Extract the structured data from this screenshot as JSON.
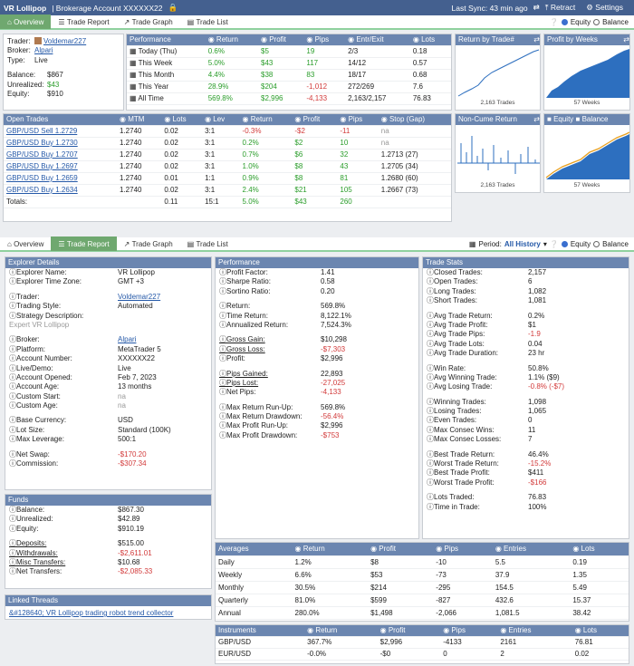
{
  "titlebar": {
    "app": "VR Lollipop",
    "account": "| Brokerage Account XXXXXX22",
    "last_sync": "Last Sync: 43 min ago",
    "retract": "Retract",
    "settings": "Settings"
  },
  "tabs": [
    "Overview",
    "Trade Report",
    "Trade Graph",
    "Trade List"
  ],
  "radio": {
    "equity": "Equity",
    "balance": "Balance"
  },
  "period": {
    "label": "Period:",
    "value": "All History"
  },
  "summary": {
    "trader_k": "Trader:",
    "trader": "Voldemar227",
    "broker_k": "Broker:",
    "broker": "Alpari",
    "type_k": "Type:",
    "type": "Live",
    "bal_k": "Balance:",
    "bal": "$867",
    "unr_k": "Unrealized:",
    "unr": "$43",
    "eq_k": "Equity:",
    "eq": "$910"
  },
  "perf_top": {
    "headers": [
      "Performance",
      "Return",
      "Profit",
      "Pips",
      "Entr/Exit",
      "Lots"
    ],
    "rows": [
      [
        "Today (Thu)",
        "0.6%",
        "$5",
        "19",
        "2/3",
        "0.18"
      ],
      [
        "This Week",
        "5.0%",
        "$43",
        "117",
        "14/12",
        "0.57"
      ],
      [
        "This Month",
        "4.4%",
        "$38",
        "83",
        "18/17",
        "0.68"
      ],
      [
        "This Year",
        "28.9%",
        "$204",
        "-1,012",
        "272/269",
        "7.6"
      ],
      [
        "All Time",
        "569.8%",
        "$2,996",
        "-4,133",
        "2,163/2,157",
        "76.83"
      ]
    ]
  },
  "minicharts": {
    "c1": "Return by Trade#",
    "c1cap": "2,163 Trades",
    "c2": "Profit by Weeks",
    "c2cap": "57 Weeks",
    "c3": "Non-Cume Return",
    "c3cap": "2,163 Trades",
    "c4a": "Equity",
    "c4b": "Balance",
    "c4cap": "57 Weeks"
  },
  "open_trades": {
    "headers": [
      "Open Trades",
      "MTM",
      "Lots",
      "Lev",
      "Return",
      "Profit",
      "Pips",
      "Stop (Gap)"
    ],
    "rows": [
      [
        "GBP/USD Sell 1.2729",
        "1.2740",
        "0.02",
        "3:1",
        "-0.3%",
        "-$2",
        "-11",
        "na"
      ],
      [
        "GBP/USD Buy 1.2730",
        "1.2740",
        "0.02",
        "3:1",
        "0.2%",
        "$2",
        "10",
        "na"
      ],
      [
        "GBP/USD Buy 1.2707",
        "1.2740",
        "0.02",
        "3:1",
        "0.7%",
        "$6",
        "32",
        "1.2713 (27)"
      ],
      [
        "GBP/USD Buy 1.2697",
        "1.2740",
        "0.02",
        "3:1",
        "1.0%",
        "$8",
        "43",
        "1.2705 (34)"
      ],
      [
        "GBP/USD Buy 1.2659",
        "1.2740",
        "0.01",
        "1:1",
        "0.9%",
        "$8",
        "81",
        "1.2680 (60)"
      ],
      [
        "GBP/USD Buy 1.2634",
        "1.2740",
        "0.02",
        "3:1",
        "2.4%",
        "$21",
        "105",
        "1.2667 (73)"
      ]
    ],
    "totals": [
      "Totals:",
      "",
      "0.11",
      "15:1",
      "5.0%",
      "$43",
      "260",
      ""
    ]
  },
  "explorer": {
    "title": "Explorer Details",
    "rows": [
      [
        "Explorer Name:",
        "VR Lollipop"
      ],
      [
        "Explorer Time Zone:",
        "GMT +3"
      ],
      [
        "",
        ""
      ],
      [
        "Trader:",
        "Voldemar227"
      ],
      [
        "Trading Style:",
        "Automated"
      ],
      [
        "Strategy Description:",
        ""
      ],
      [
        "Expert VR Lollipop",
        ""
      ],
      [
        "",
        ""
      ],
      [
        "Broker:",
        "Alpari"
      ],
      [
        "Platform:",
        "MetaTrader 5"
      ],
      [
        "Account Number:",
        "XXXXXX22"
      ],
      [
        "Live/Demo:",
        "Live"
      ],
      [
        "Account Opened:",
        "Feb 7, 2023"
      ],
      [
        "Account Age:",
        "13 months"
      ],
      [
        "Custom Start:",
        "na"
      ],
      [
        "Custom Age:",
        "na"
      ],
      [
        "",
        ""
      ],
      [
        "Base Currency:",
        "USD"
      ],
      [
        "Lot Size:",
        "Standard (100K)"
      ],
      [
        "Max Leverage:",
        "500:1"
      ],
      [
        "",
        ""
      ],
      [
        "Net Swap:",
        "-$170.20"
      ],
      [
        "Commission:",
        "-$307.34"
      ]
    ]
  },
  "funds": {
    "title": "Funds",
    "rows": [
      [
        "Balance:",
        "$867.30"
      ],
      [
        "Unrealized:",
        "$42.89"
      ],
      [
        "Equity:",
        "$910.19"
      ],
      [
        "",
        ""
      ],
      [
        "Deposits:",
        "$515.00"
      ],
      [
        "Withdrawals:",
        "-$2,611.01"
      ],
      [
        "Misc Transfers:",
        "$10.68"
      ],
      [
        "Net Transfers:",
        "-$2,085.33"
      ]
    ]
  },
  "linked": {
    "title": "Linked Threads",
    "text": "&#128640; VR Lollipop     trading robot trend collector"
  },
  "performance": {
    "title": "Performance",
    "rows": [
      [
        "Profit Factor:",
        "1.41"
      ],
      [
        "Sharpe Ratio:",
        "0.58"
      ],
      [
        "Sortino Ratio:",
        "0.20"
      ],
      [
        "",
        ""
      ],
      [
        "Return:",
        "569.8%"
      ],
      [
        "Time Return:",
        "8,122.1%"
      ],
      [
        "Annualized Return:",
        "7,524.3%"
      ],
      [
        "",
        ""
      ],
      [
        "Gross Gain:",
        "$10,298"
      ],
      [
        "Gross Loss:",
        "-$7,303"
      ],
      [
        "Profit:",
        "$2,996"
      ],
      [
        "",
        ""
      ],
      [
        "Pips Gained:",
        "22,893"
      ],
      [
        "Pips Lost:",
        "-27,025"
      ],
      [
        "Net Pips:",
        "-4,133"
      ],
      [
        "",
        ""
      ],
      [
        "Max Return Run-Up:",
        "569.8%"
      ],
      [
        "Max Return Drawdown:",
        "-56.4%"
      ],
      [
        "Max Profit Run-Up:",
        "$2,996"
      ],
      [
        "Max Profit Drawdown:",
        "-$753"
      ]
    ]
  },
  "tradestats": {
    "title": "Trade Stats",
    "rows": [
      [
        "Closed Trades:",
        "2,157"
      ],
      [
        "Open Trades:",
        "6"
      ],
      [
        "Long Trades:",
        "1,082"
      ],
      [
        "Short Trades:",
        "1,081"
      ],
      [
        "",
        ""
      ],
      [
        "Avg Trade Return:",
        "0.2%"
      ],
      [
        "Avg Trade Profit:",
        "$1"
      ],
      [
        "Avg Trade Pips:",
        "-1.9"
      ],
      [
        "Avg Trade Lots:",
        "0.04"
      ],
      [
        "Avg Trade Duration:",
        "23 hr"
      ],
      [
        "",
        ""
      ],
      [
        "Win Rate:",
        "50.8%"
      ],
      [
        "Avg Winning Trade:",
        "1.1% ($9)"
      ],
      [
        "Avg Losing Trade:",
        "-0.8% (-$7)"
      ],
      [
        "",
        ""
      ],
      [
        "Winning Trades:",
        "1,098"
      ],
      [
        "Losing Trades:",
        "1,065"
      ],
      [
        "Even Trades:",
        "0"
      ],
      [
        "Max Consec Wins:",
        "11"
      ],
      [
        "Max Consec Losses:",
        "7"
      ],
      [
        "",
        ""
      ],
      [
        "Best Trade Return:",
        "46.4%"
      ],
      [
        "Worst Trade Return:",
        "-15.2%"
      ],
      [
        "Best Trade Profit:",
        "$411"
      ],
      [
        "Worst Trade Profit:",
        "-$166"
      ],
      [
        "",
        ""
      ],
      [
        "Lots Traded:",
        "76.83"
      ],
      [
        "Time in Trade:",
        "100%"
      ]
    ]
  },
  "averages": {
    "headers": [
      "Averages",
      "Return",
      "Profit",
      "Pips",
      "Entries",
      "Lots"
    ],
    "rows": [
      [
        "Daily",
        "1.2%",
        "$8",
        "-10",
        "5.5",
        "0.19"
      ],
      [
        "Weekly",
        "6.6%",
        "$53",
        "-73",
        "37.9",
        "1.35"
      ],
      [
        "Monthly",
        "30.5%",
        "$214",
        "-295",
        "154.5",
        "5.49"
      ],
      [
        "Quarterly",
        "81.0%",
        "$599",
        "-827",
        "432.6",
        "15.37"
      ],
      [
        "Annual",
        "280.0%",
        "$1,498",
        "-2,066",
        "1,081.5",
        "38.42"
      ]
    ]
  },
  "instruments": {
    "headers": [
      "Instruments",
      "Return",
      "Profit",
      "Pips",
      "Entries",
      "Lots"
    ],
    "rows": [
      [
        "GBP/USD",
        "367.7%",
        "$2,996",
        "-4133",
        "2161",
        "76.81"
      ],
      [
        "EUR/USD",
        "-0.0%",
        "-$0",
        "0",
        "2",
        "0.02"
      ]
    ]
  }
}
